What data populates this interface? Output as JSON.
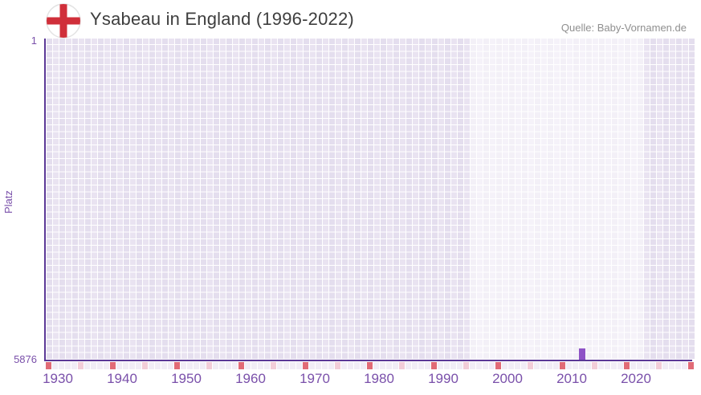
{
  "header": {
    "title": "Ysabeau in England (1996-2022)",
    "source": "Quelle: Baby-Vornamen.de",
    "flag_icon": "england-flag-icon"
  },
  "chart_data": {
    "type": "bar",
    "title": "Ysabeau in England (1996-2022)",
    "xlabel": "",
    "ylabel": "Platz",
    "y_axis": {
      "top_tick_label": "1",
      "bottom_tick_label": "5876",
      "min": 1,
      "max": 5876,
      "inverted": true
    },
    "x_axis": {
      "start": 1930,
      "end": 2030,
      "tick_labels": [
        "1930",
        "1940",
        "1950",
        "1960",
        "1970",
        "1980",
        "1990",
        "2000",
        "2010",
        "2020"
      ],
      "major_tick_every": 10,
      "minor_tick_every": 5
    },
    "highlight_range": {
      "from": 1996,
      "to": 2022
    },
    "series": [
      {
        "name": "Ysabeau",
        "points": [
          {
            "year": 2013,
            "rank": 5671
          }
        ]
      }
    ],
    "grid": true,
    "legend": false
  },
  "colors": {
    "axis_line": "#5b3897",
    "bar": "#8e52c6",
    "label_purple": "#7a50aa",
    "title_text": "#3e3e3e",
    "source_text": "#8f8f8f",
    "grid_cell": "#e6e0ef",
    "grid_cell_alt": "#e9e3f1",
    "highlight_overlay": "rgba(255,255,255,0.55)",
    "tick_cell_default": "#f1edf6",
    "tick_cell_minor": "#f2cdd8",
    "tick_cell_major": "#e16b76",
    "flag_red": "#d02f3a"
  }
}
